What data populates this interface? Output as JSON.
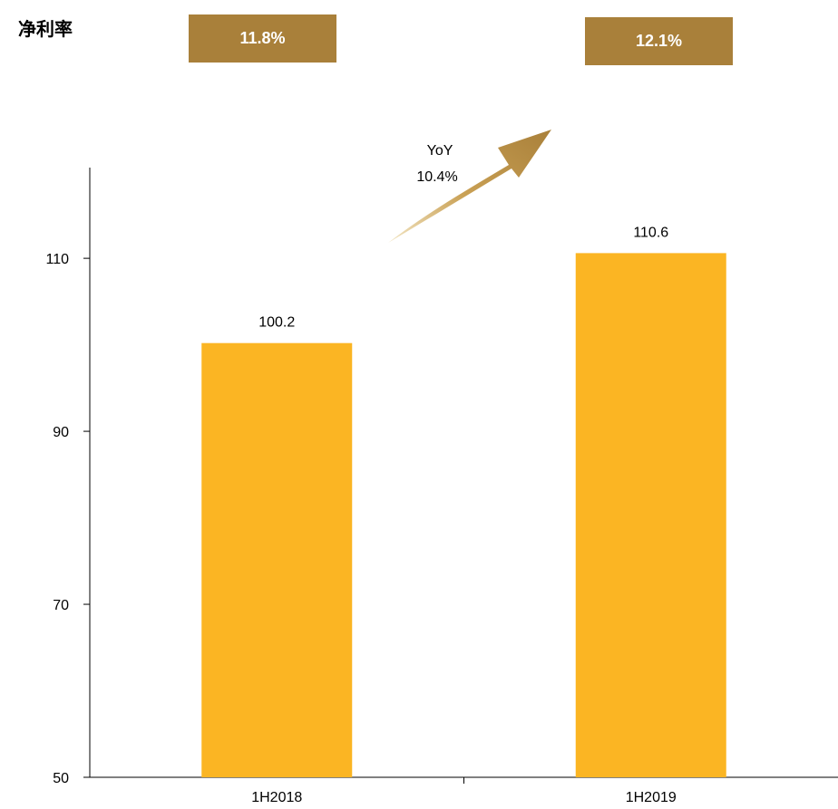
{
  "net_margin_label": "净利率",
  "net_margins": [
    "11.8%",
    "12.1%"
  ],
  "accent_color": "#a9803a",
  "bar_color": "#fbb523",
  "growth": {
    "line1": "YoY",
    "line2": "10.4%"
  },
  "chart_data": {
    "type": "bar",
    "categories": [
      "1H2018",
      "1H2019"
    ],
    "values": [
      100.2,
      110.6
    ],
    "data_labels": [
      "100.2",
      "110.6"
    ],
    "ylim": [
      50,
      123
    ],
    "yticks": [
      50,
      70,
      90,
      110
    ],
    "title": "",
    "xlabel": "",
    "ylabel": "",
    "grid": false
  }
}
